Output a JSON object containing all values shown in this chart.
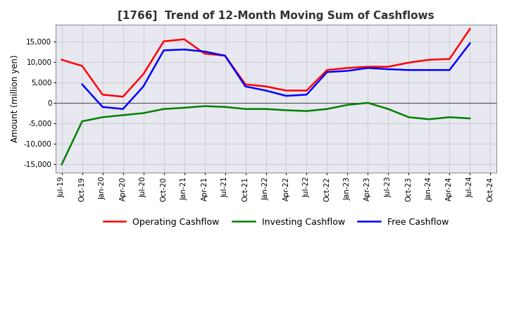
{
  "title": "[1766]  Trend of 12-Month Moving Sum of Cashflows",
  "ylabel": "Amount (million yen)",
  "ylim": [
    -17000,
    19000
  ],
  "yticks": [
    -15000,
    -10000,
    -5000,
    0,
    5000,
    10000,
    15000
  ],
  "background_color": "#ffffff",
  "plot_bg_color": "#e8e8f0",
  "grid_color": "#aaaaaa",
  "dates": [
    "Jul-19",
    "Oct-19",
    "Jan-20",
    "Apr-20",
    "Jul-20",
    "Oct-20",
    "Jan-21",
    "Apr-21",
    "Jul-21",
    "Oct-21",
    "Jan-22",
    "Apr-22",
    "Jul-22",
    "Oct-22",
    "Jan-23",
    "Apr-23",
    "Jul-23",
    "Oct-23",
    "Jan-24",
    "Apr-24",
    "Jul-24",
    "Oct-24"
  ],
  "operating": [
    10500,
    9000,
    2000,
    1500,
    7000,
    15000,
    15500,
    12000,
    11500,
    4500,
    4000,
    3000,
    3000,
    8000,
    8500,
    8800,
    8800,
    9800,
    10500,
    10700,
    18000,
    null
  ],
  "investing": [
    -15000,
    -4500,
    -3500,
    -3000,
    -2500,
    -1500,
    -1200,
    -800,
    -1000,
    -1500,
    -1500,
    -1800,
    -2000,
    -1500,
    -500,
    0,
    -1500,
    -3500,
    -4000,
    -3500,
    -3800,
    null
  ],
  "free": [
    null,
    4500,
    -1000,
    -1500,
    4000,
    12800,
    13000,
    12500,
    11500,
    4000,
    3000,
    1700,
    2000,
    7500,
    7800,
    8500,
    8200,
    8000,
    8000,
    8000,
    14500,
    null
  ],
  "operating_color": "#ff0000",
  "investing_color": "#008000",
  "free_color": "#0000ff",
  "legend_labels": [
    "Operating Cashflow",
    "Investing Cashflow",
    "Free Cashflow"
  ]
}
